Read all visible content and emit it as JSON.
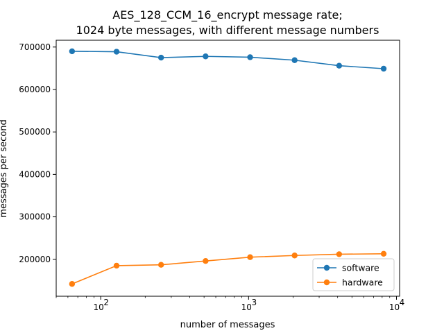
{
  "chart_data": {
    "type": "line",
    "title_line1": "AES_128_CCM_16_encrypt message rate;",
    "title_line2": "1024 byte messages, with different message numbers",
    "xlabel": "number of messages",
    "ylabel": "messages per second",
    "x_scale": "log",
    "xlim": [
      50,
      10500
    ],
    "ylim": [
      113000,
      716000
    ],
    "x_ticks": [
      {
        "value": 100,
        "base": "10",
        "exp": "2"
      },
      {
        "value": 1000,
        "base": "10",
        "exp": "3"
      },
      {
        "value": 10000,
        "base": "10",
        "exp": "4"
      }
    ],
    "y_ticks": [
      {
        "value": 200000,
        "label": "200000"
      },
      {
        "value": 300000,
        "label": "300000"
      },
      {
        "value": 400000,
        "label": "400000"
      },
      {
        "value": 500000,
        "label": "500000"
      },
      {
        "value": 600000,
        "label": "600000"
      },
      {
        "value": 700000,
        "label": "700000"
      }
    ],
    "x": [
      64,
      128,
      256,
      512,
      1024,
      2048,
      4096,
      8192
    ],
    "series": [
      {
        "name": "software",
        "color": "#1f77b4",
        "values": [
          690000,
          689000,
          675000,
          678000,
          676000,
          669000,
          656000,
          649000
        ]
      },
      {
        "name": "hardware",
        "color": "#ff7f0e",
        "values": [
          142000,
          185000,
          187000,
          196000,
          205000,
          209000,
          212000,
          213000
        ]
      }
    ],
    "grid": false,
    "legend_position": "lower-right"
  }
}
